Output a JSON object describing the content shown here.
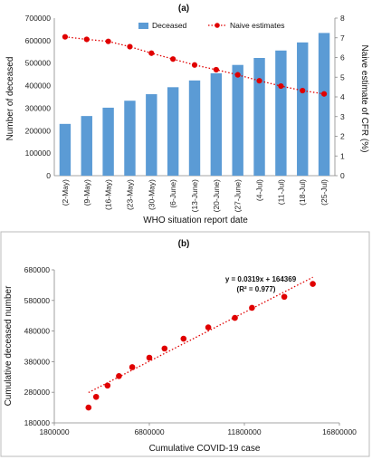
{
  "chart_data": [
    {
      "type": "bar",
      "panel_label": "(a)",
      "categories": [
        "(2-May)",
        "(9-May)",
        "(16-May)",
        "(23-May)",
        "(30-May)",
        "(6-June)",
        "(13-June)",
        "(20-June)",
        "(27-June)",
        "(4-Jul)",
        "(11-Jul)",
        "(18-Jul)",
        "(25-Jul)"
      ],
      "series": [
        {
          "name": "Deceased",
          "type": "bar",
          "axis": "left",
          "color": "#5b9bd5",
          "values": [
            230000,
            265000,
            302000,
            333000,
            362000,
            393000,
            423000,
            455000,
            492000,
            523000,
            556000,
            592000,
            634000
          ]
        },
        {
          "name": "Naive estimates",
          "type": "line",
          "axis": "right",
          "color": "#e00000",
          "values": [
            7.05,
            6.92,
            6.82,
            6.55,
            6.22,
            5.92,
            5.62,
            5.38,
            5.12,
            4.82,
            4.55,
            4.32,
            4.15
          ]
        }
      ],
      "xlabel": "WHO situation report date",
      "ylabel": "Number of deceased",
      "y2label": "Naive estimate of CFR (%)",
      "ylim": [
        0,
        700000
      ],
      "y2lim": [
        0,
        8
      ],
      "yticks": [
        "0",
        "100000",
        "200000",
        "300000",
        "400000",
        "500000",
        "600000",
        "700000"
      ],
      "y2ticks": [
        "0",
        "1",
        "2",
        "3",
        "4",
        "5",
        "6",
        "7",
        "8"
      ],
      "grid": false,
      "legend_position": "top"
    },
    {
      "type": "scatter",
      "panel_label": "(b)",
      "x": [
        3600000,
        4000000,
        4600000,
        5200000,
        5900000,
        6800000,
        7600000,
        8600000,
        9900000,
        11300000,
        12200000,
        13900000,
        15400000
      ],
      "y": [
        230000,
        265000,
        302000,
        333000,
        362000,
        393000,
        423000,
        455000,
        492000,
        523000,
        556000,
        592000,
        634000
      ],
      "marker_color": "#e00000",
      "trendline": {
        "slope": 0.0319,
        "intercept": 164369,
        "x_range": [
          3600000,
          15400000
        ],
        "color": "#e00000",
        "style": "dotted"
      },
      "equation": "y = 0.0319x + 164369",
      "r_squared": "(R² = 0.977)",
      "xlabel": "Cumulative COVID-19 case",
      "ylabel": "Cumulative deceased number",
      "xlim": [
        1800000,
        16800000
      ],
      "ylim": [
        180000,
        680000
      ],
      "xticks": [
        "1800000",
        "6800000",
        "11800000",
        "16800000"
      ],
      "yticks": [
        "180000",
        "280000",
        "380000",
        "480000",
        "580000",
        "680000"
      ],
      "grid": false
    }
  ]
}
